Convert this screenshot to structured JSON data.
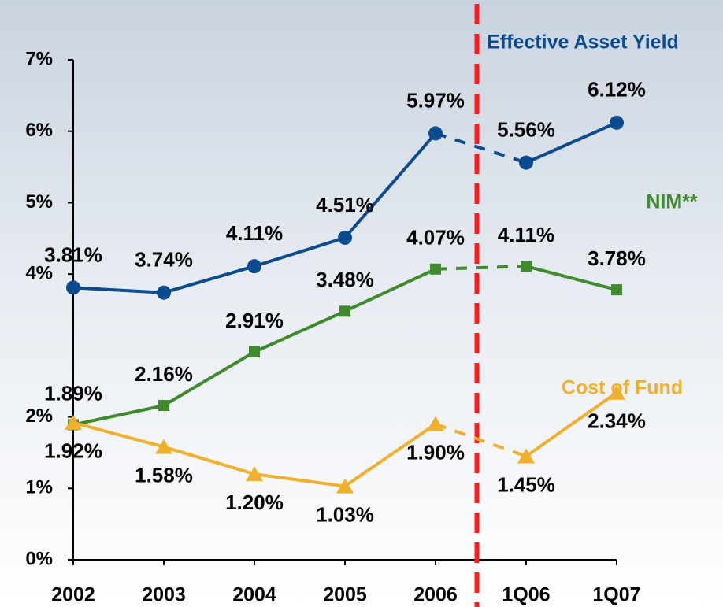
{
  "chart_data": {
    "type": "line",
    "categories": [
      "2002",
      "2003",
      "2004",
      "2005",
      "2006",
      "1Q06",
      "1Q07"
    ],
    "ylim": [
      0,
      7
    ],
    "yticks": [
      {
        "value": 0,
        "label": "0%"
      },
      {
        "value": 1,
        "label": "1%"
      },
      {
        "value": 2,
        "label": "2%"
      },
      {
        "value": 4,
        "label": "4%"
      },
      {
        "value": 5,
        "label": "5%"
      },
      {
        "value": 6,
        "label": "6%"
      },
      {
        "value": 7,
        "label": "7%"
      }
    ],
    "series": [
      {
        "name": "Effective Asset Yield",
        "color": "#0c4b8e",
        "marker": "circle",
        "values": [
          3.81,
          3.74,
          4.11,
          4.51,
          5.97,
          5.56,
          6.12
        ],
        "value_labels": [
          "3.81%",
          "3.74%",
          "4.11%",
          "4.51%",
          "5.97%",
          "5.56%",
          "6.12%"
        ]
      },
      {
        "name": "NIM**",
        "color": "#3e8a2c",
        "marker": "square",
        "values": [
          1.89,
          2.16,
          2.91,
          3.48,
          4.07,
          4.11,
          3.78
        ],
        "value_labels": [
          "1.89%",
          "2.16%",
          "2.91%",
          "3.48%",
          "4.07%",
          "4.11%",
          "3.78%"
        ]
      },
      {
        "name": "Cost of Fund",
        "color": "#efb02e",
        "marker": "triangle",
        "values": [
          1.92,
          1.58,
          1.2,
          1.03,
          1.9,
          1.45,
          2.34
        ],
        "value_labels": [
          "1.92%",
          "1.58%",
          "1.20%",
          "1.03%",
          "1.90%",
          "1.45%",
          "2.34%"
        ]
      }
    ]
  }
}
